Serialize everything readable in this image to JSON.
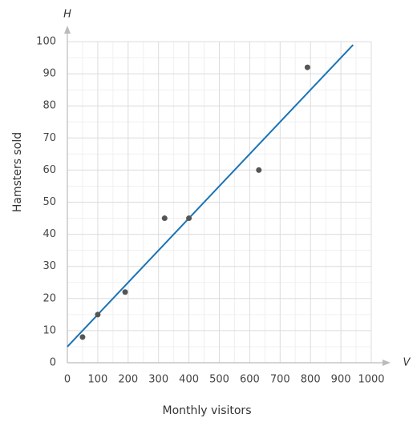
{
  "chart_data": {
    "type": "scatter",
    "x_axis_label": "Monthly visitors",
    "y_axis_label": "Hamsters sold",
    "x_variable": "V",
    "y_variable": "H",
    "x": [
      50,
      100,
      190,
      320,
      400,
      630,
      790
    ],
    "values": [
      8,
      15,
      22,
      45,
      45,
      60,
      92
    ],
    "color": "#555555",
    "fit_line": {
      "x": [
        0,
        940
      ],
      "values": [
        5,
        99
      ],
      "color": "#1a73b5"
    },
    "xlim": [
      0,
      1000
    ],
    "xticks": [
      0,
      100,
      200,
      300,
      400,
      500,
      600,
      700,
      800,
      900,
      1000
    ],
    "ylim": [
      0,
      100
    ],
    "yticks": [
      0,
      10,
      20,
      30,
      40,
      50,
      60,
      70,
      80,
      90,
      100
    ],
    "minor_xticks": [
      50,
      150,
      250,
      350,
      450,
      550,
      650,
      750,
      850,
      950
    ],
    "minor_yticks": [
      5,
      15,
      25,
      35,
      45,
      55,
      65,
      75,
      85,
      95
    ],
    "grid": true
  }
}
